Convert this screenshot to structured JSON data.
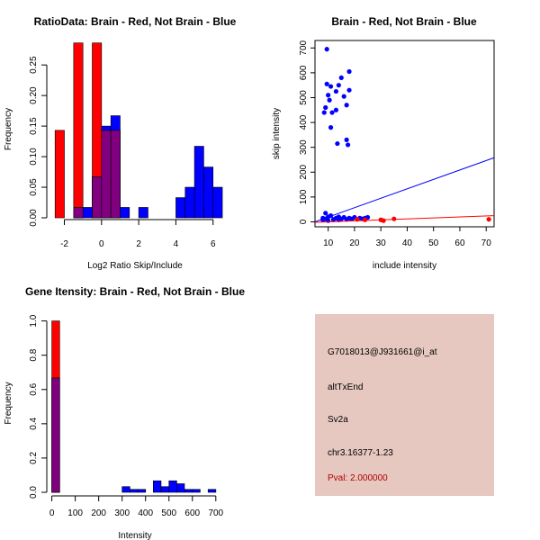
{
  "colors": {
    "brain": "#ff0000",
    "not_brain": "#0000ff",
    "overlap": "#800080",
    "panel_bg": "#e6c8c0",
    "pval_text": "#b00000"
  },
  "chart_data": [
    {
      "type": "bar",
      "subtype": "histogram",
      "title": "RatioData: Brain - Red, Not Brain - Blue",
      "xlabel": "Log2 Ratio Skip/Include",
      "ylabel": "Frequency",
      "xlim": [
        -2.8,
        6.4
      ],
      "ylim": [
        0,
        0.29
      ],
      "xticks": [
        -2,
        0,
        2,
        4,
        6
      ],
      "yticks": [
        0.0,
        0.05,
        0.1,
        0.15,
        0.2,
        0.25
      ],
      "ytick_labels": [
        "0.00",
        "0.05",
        "0.10",
        "0.15",
        "0.20",
        "0.25"
      ],
      "bin_width": 0.5,
      "series": [
        {
          "name": "Brain",
          "color": "red",
          "bins": [
            {
              "start": -2.5,
              "value": 0.143
            },
            {
              "start": -1.5,
              "value": 0.286
            },
            {
              "start": -0.5,
              "value": 0.286
            },
            {
              "start": 0.0,
              "value": 0.143
            },
            {
              "start": 0.5,
              "value": 0.143
            }
          ]
        },
        {
          "name": "Not Brain",
          "color": "blue",
          "bins": [
            {
              "start": -1.5,
              "value": 0.017
            },
            {
              "start": -1.0,
              "value": 0.017
            },
            {
              "start": -0.5,
              "value": 0.067
            },
            {
              "start": 0.0,
              "value": 0.15
            },
            {
              "start": 0.5,
              "value": 0.167
            },
            {
              "start": 1.0,
              "value": 0.017
            },
            {
              "start": 2.0,
              "value": 0.017
            },
            {
              "start": 4.0,
              "value": 0.033
            },
            {
              "start": 4.5,
              "value": 0.05
            },
            {
              "start": 5.0,
              "value": 0.117
            },
            {
              "start": 5.5,
              "value": 0.083
            },
            {
              "start": 6.0,
              "value": 0.05
            }
          ]
        }
      ]
    },
    {
      "type": "scatter",
      "title": "Brain - Red, Not Brain - Blue",
      "xlabel": "include intensity",
      "ylabel": "skip intensity",
      "xlim": [
        5,
        73
      ],
      "ylim": [
        -20,
        730
      ],
      "xticks": [
        10,
        20,
        30,
        40,
        50,
        60,
        70
      ],
      "yticks": [
        0,
        100,
        200,
        300,
        400,
        500,
        600,
        700
      ],
      "series": [
        {
          "name": "Not Brain",
          "color": "blue",
          "points": [
            [
              9.5,
              695
            ],
            [
              8.5,
              440
            ],
            [
              9,
              460
            ],
            [
              9.5,
              555
            ],
            [
              10,
              510
            ],
            [
              10.5,
              490
            ],
            [
              11,
              545
            ],
            [
              11.5,
              440
            ],
            [
              11,
              380
            ],
            [
              13,
              450
            ],
            [
              13,
              525
            ],
            [
              13.5,
              315
            ],
            [
              14,
              550
            ],
            [
              15,
              580
            ],
            [
              16,
              505
            ],
            [
              17,
              470
            ],
            [
              17,
              330
            ],
            [
              17.5,
              310
            ],
            [
              18,
              605
            ],
            [
              18,
              530
            ],
            [
              8,
              15
            ],
            [
              9,
              12
            ],
            [
              9,
              35
            ],
            [
              10,
              20
            ],
            [
              11,
              25
            ],
            [
              12,
              10
            ],
            [
              13,
              15
            ],
            [
              14,
              20
            ],
            [
              15,
              12
            ],
            [
              16,
              18
            ],
            [
              17,
              10
            ],
            [
              18,
              15
            ],
            [
              19,
              12
            ],
            [
              20,
              18
            ],
            [
              22,
              15
            ],
            [
              23,
              12
            ],
            [
              24,
              15
            ],
            [
              25,
              18
            ],
            [
              8,
              8
            ],
            [
              10,
              5
            ],
            [
              12,
              8
            ],
            [
              14,
              8
            ]
          ]
        },
        {
          "name": "Brain",
          "color": "red",
          "points": [
            [
              21,
              10
            ],
            [
              24,
              8
            ],
            [
              30,
              8
            ],
            [
              31,
              5
            ],
            [
              35,
              12
            ],
            [
              71,
              10
            ]
          ]
        }
      ],
      "fit_lines": [
        {
          "name": "Not Brain fit",
          "color": "blue",
          "from": [
            5,
            0
          ],
          "to": [
            73,
            258
          ]
        },
        {
          "name": "Brain fit",
          "color": "red",
          "from": [
            5,
            -2
          ],
          "to": [
            73,
            25
          ]
        }
      ]
    },
    {
      "type": "bar",
      "subtype": "histogram",
      "title": "Gene Itensity: Brain - Red, Not Brain - Blue",
      "xlabel": "Intensity",
      "ylabel": "Frequency",
      "xlim": [
        -10,
        720
      ],
      "ylim": [
        0,
        1.04
      ],
      "xticks": [
        0,
        100,
        200,
        300,
        400,
        500,
        600,
        700
      ],
      "yticks": [
        0.0,
        0.2,
        0.4,
        0.6,
        0.8,
        1.0
      ],
      "ytick_labels": [
        "0.0",
        "0.2",
        "0.4",
        "0.6",
        "0.8",
        "1.0"
      ],
      "bin_width": 33.3,
      "series": [
        {
          "name": "Brain",
          "color": "red",
          "bins": [
            {
              "start": 0,
              "value": 1.0
            }
          ]
        },
        {
          "name": "Not Brain",
          "color": "blue",
          "bins": [
            {
              "start": 0,
              "value": 0.667
            },
            {
              "start": 300,
              "value": 0.033
            },
            {
              "start": 333,
              "value": 0.017
            },
            {
              "start": 367,
              "value": 0.017
            },
            {
              "start": 433,
              "value": 0.067
            },
            {
              "start": 467,
              "value": 0.033
            },
            {
              "start": 500,
              "value": 0.067
            },
            {
              "start": 533,
              "value": 0.05
            },
            {
              "start": 567,
              "value": 0.017
            },
            {
              "start": 600,
              "value": 0.017
            },
            {
              "start": 667,
              "value": 0.017
            }
          ]
        }
      ]
    }
  ],
  "info": {
    "probe": "G7018013@J931661@i_at",
    "event": "altTxEnd",
    "gene": "Sv2a",
    "location": "chr3.16377-1.23",
    "pval": "Pval: 2.000000"
  }
}
